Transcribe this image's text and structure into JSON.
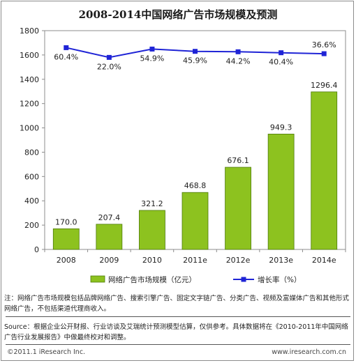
{
  "title": "2008-2014中国网络广告市场规模及预测",
  "chart_data": {
    "type": "bar",
    "categories": [
      "2008",
      "2009",
      "2010",
      "2011e",
      "2012e",
      "2013e",
      "2014e"
    ],
    "series": [
      {
        "name": "网络广告市场规模（亿元）",
        "type": "bar",
        "values": [
          170.0,
          207.4,
          321.2,
          468.8,
          676.1,
          949.3,
          1296.4
        ],
        "labels": [
          "170.0",
          "207.4",
          "321.2",
          "468.8",
          "676.1",
          "949.3",
          "1296.4"
        ],
        "color": "#8dc21f"
      },
      {
        "name": "增长率（%）",
        "type": "line",
        "values": [
          60.4,
          22.0,
          54.9,
          45.9,
          44.2,
          40.4,
          36.6
        ],
        "labels": [
          "60.4%",
          "22.0%",
          "54.9%",
          "45.9%",
          "44.2%",
          "40.4%",
          "36.6%"
        ],
        "color": "#1f24d6"
      }
    ],
    "ylim": [
      0,
      1800
    ],
    "yticks": [
      "0",
      "200",
      "400",
      "600",
      "800",
      "1000",
      "1200",
      "1400",
      "1600",
      "1800"
    ],
    "grid": false,
    "legend_position": "bottom"
  },
  "notes": "注：网络广告市场规模包括品牌网络广告、搜索引擎广告、固定文字链广告、分类广告、视频及富媒体广告和其他形式网络广告，不包括渠道代理商收入。",
  "source": "Source：根据企业公开财报、行业访谈及艾瑞统计预测模型估算，仅供参考。具体数据将在《2010-2011年中国网络广告行业发展报告》中做最终校对和调整。",
  "footer": {
    "copyright": "©2011.1 iResearch Inc.",
    "website": "www.iresearch.com.cn"
  }
}
